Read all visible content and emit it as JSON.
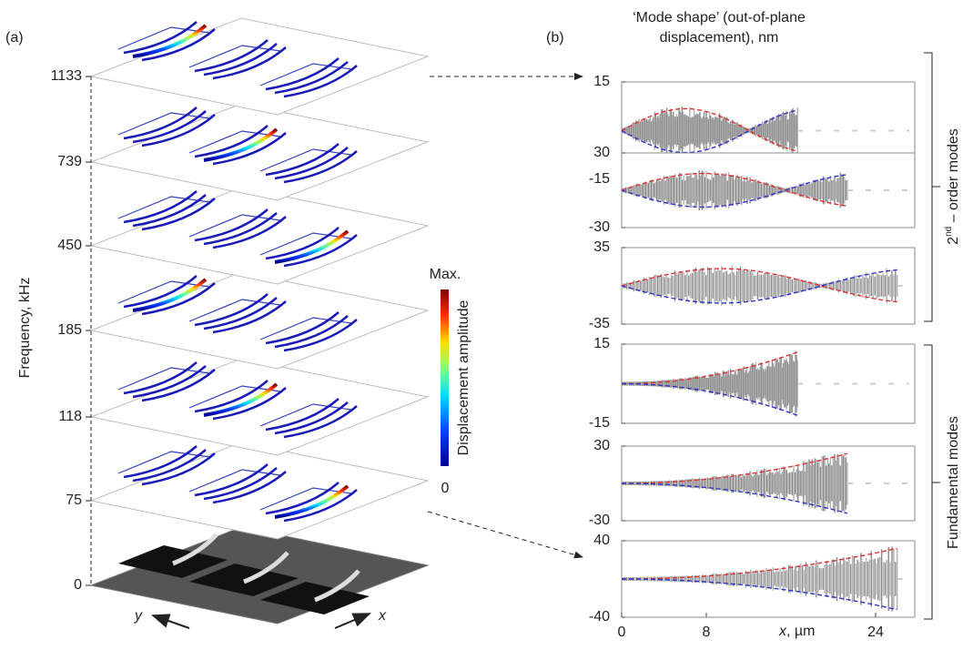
{
  "panel_a": {
    "label": "(a)",
    "axis_label": "Frequency, kHz",
    "ticks": [
      "1133",
      "739",
      "450",
      "185",
      "118",
      "75",
      "0"
    ],
    "colorbar": {
      "max_label": "Max.",
      "title": "Displacement amplitude",
      "min_label": "0"
    },
    "x_label": "x",
    "y_label": "y"
  },
  "panel_b": {
    "label": "(b)",
    "title_line1": "‘Mode shape’ (out-of-plane",
    "title_line2": "displacement), nm",
    "xlim": [
      0,
      27.7
    ],
    "xticks": [
      0,
      8,
      24
    ],
    "x_axis_label": "x",
    "x_axis_unit": ", µm",
    "plots": [
      {
        "ylim": [
          -15,
          15
        ],
        "yticks": [
          15,
          -15
        ]
      },
      {
        "ylim": [
          -30,
          30
        ],
        "yticks": [
          30,
          -30
        ]
      },
      {
        "ylim": [
          -35,
          35
        ],
        "yticks": [
          35,
          -35
        ]
      },
      {
        "ylim": [
          -15,
          15
        ],
        "yticks": [
          15,
          -15
        ]
      },
      {
        "ylim": [
          -30,
          30
        ],
        "yticks": [
          30,
          -30
        ]
      },
      {
        "ylim": [
          -40,
          40
        ],
        "yticks": [
          40,
          -40
        ]
      }
    ],
    "bracket_top": {
      "sup_base": "2",
      "sup": "nd",
      "rest": " – order modes"
    },
    "bracket_bottom": "Fundamental modes"
  }
}
